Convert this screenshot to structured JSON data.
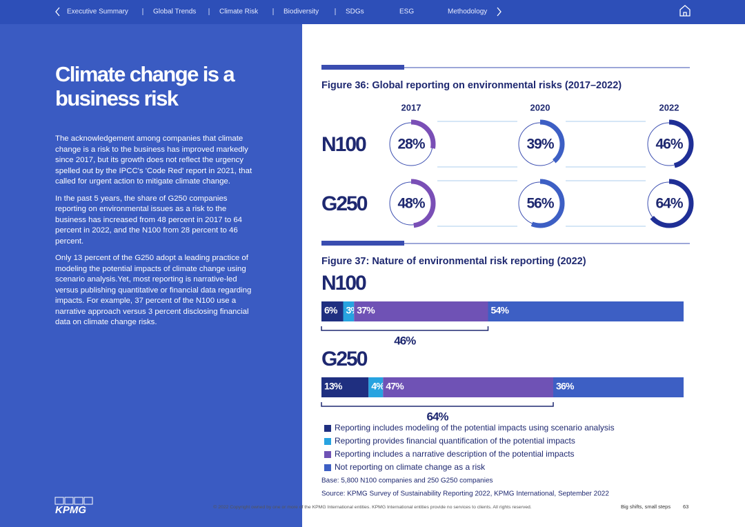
{
  "nav": {
    "items": [
      "Executive Summary",
      "Global Trends",
      "Climate Risk",
      "Biodiversity",
      "SDGs",
      "ESG",
      "Methodology"
    ]
  },
  "left": {
    "title_lines": [
      "Climate change is a",
      "business risk"
    ],
    "paragraphs": [
      "The acknowledgement among companies that climate change is a risk to the business has improved markedly since 2017, but its growth does not reflect the urgency spelled out by the IPCC's 'Code Red' report in 2021, that called for urgent action to mitigate climate change.",
      "In the past 5 years, the share of G250 companies reporting on environmental issues as a risk to the business has increased from 48 percent in 2017 to 64 percent in 2022, and the N100 from 28 percent to 46 percent.",
      "Only 13 percent of the G250 adopt a leading practice of modeling the potential impacts of climate change using scenario analysis.Yet, most reporting is narrative-led versus publishing quantitative or financial data regarding impacts. For example, 37 percent of the N100 use a narrative approach versus 3 percent disclosing financial data on climate change risks."
    ],
    "logo": "KPMG"
  },
  "figure36": {
    "title": "Figure 36: Global reporting on environmental risks (2017–2022)",
    "years": [
      "2017",
      "2020",
      "2022"
    ],
    "colors": [
      "#7a4fb6",
      "#3d5fc4",
      "#1f2f96"
    ],
    "xlim": [
      0,
      100
    ],
    "rows": [
      {
        "label": "N100",
        "values": [
          28,
          39,
          46
        ],
        "value_labels": [
          "28%",
          "39%",
          "46%"
        ]
      },
      {
        "label": "G250",
        "values": [
          48,
          56,
          64
        ],
        "value_labels": [
          "48%",
          "56%",
          "64%"
        ]
      }
    ]
  },
  "figure37": {
    "title": "Figure 37: Nature of environmental risk reporting (2022)",
    "xlim": [
      0,
      100
    ],
    "series": [
      {
        "name": "Reporting includes modeling of the potential impacts using scenario analysis",
        "color": "#1f2f80"
      },
      {
        "name": "Reporting provides financial quantification of the potential impacts",
        "color": "#27a3e0"
      },
      {
        "name": "Reporting includes a narrative description of the potential impacts",
        "color": "#6f52b5"
      },
      {
        "name": "Not reporting on climate change as a risk",
        "color": "#3d5fc4"
      }
    ],
    "groups": [
      {
        "label": "N100",
        "values": [
          6,
          3,
          37,
          54
        ],
        "value_labels": [
          "6%",
          "3%",
          "37%",
          "54%"
        ],
        "bracket_label": "46%"
      },
      {
        "label": "G250",
        "values": [
          13,
          4,
          47,
          36
        ],
        "value_labels": [
          "13%",
          "4%",
          "47%",
          "36%"
        ],
        "bracket_label": "64%"
      }
    ],
    "base": "Base: 5,800 N100 companies and 250 G250 companies",
    "source": "Source: KPMG Survey of Sustainability Reporting 2022, KPMG International, September 2022"
  },
  "footer": {
    "copyright": "© 2022 Copyright owned by one or more of the KPMG International entities. KPMG International entities provide no services to clients. All rights reserved.",
    "tagline": "Big shifts, small steps",
    "page": "63"
  }
}
